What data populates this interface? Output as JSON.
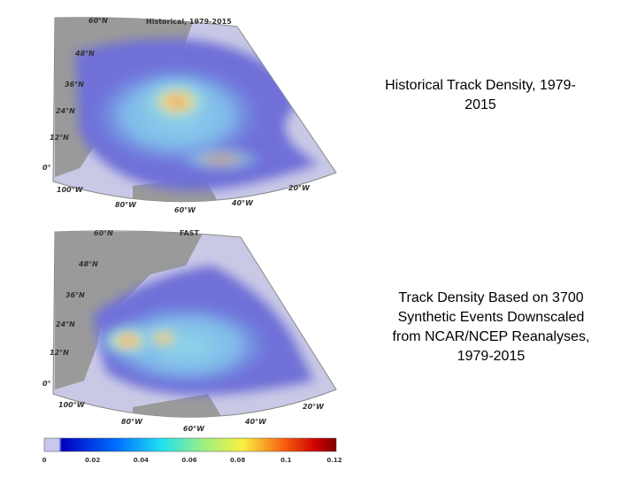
{
  "maps": [
    {
      "title": "Historical, 1979-2015",
      "lat_labels": [
        "60°N",
        "48°N",
        "36°N",
        "24°N",
        "12°N",
        "0°"
      ],
      "lon_labels": [
        "100°W",
        "80°W",
        "60°W",
        "40°W",
        "20°W"
      ]
    },
    {
      "title": "FAST",
      "lat_labels": [
        "60°N",
        "48°N",
        "36°N",
        "24°N",
        "12°N",
        "0°"
      ],
      "lon_labels": [
        "100°W",
        "80°W",
        "60°W",
        "40°W",
        "20°W"
      ]
    }
  ],
  "colorbar": {
    "ticks": [
      "0",
      "0.02",
      "0.04",
      "0.06",
      "0.08",
      "0.1",
      "0.12"
    ]
  },
  "captions": [
    {
      "lines": [
        "Historical Track Density, 1979-",
        "2015"
      ]
    },
    {
      "lines": [
        "Track Density Based on 3700",
        "Synthetic Events Downscaled",
        "from NCAR/NCEP Reanalyses,",
        "1979-2015"
      ]
    }
  ]
}
